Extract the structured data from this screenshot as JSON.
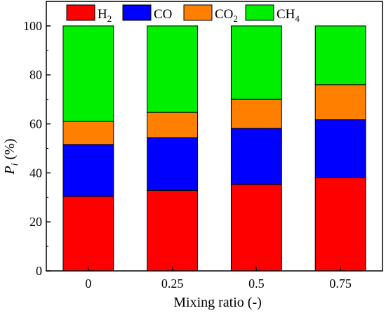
{
  "chart_data": {
    "type": "bar",
    "stacked": true,
    "categories": [
      "0",
      "0.25",
      "0.5",
      "0.75"
    ],
    "series": [
      {
        "name": "H2",
        "label_main": "H",
        "label_sub": "2",
        "color": "#ff0000",
        "values": [
          30.4,
          32.8,
          35.3,
          38.1
        ]
      },
      {
        "name": "CO",
        "label_main": "CO",
        "label_sub": "",
        "color": "#0000ff",
        "values": [
          21.2,
          21.6,
          22.9,
          23.6
        ]
      },
      {
        "name": "CO2",
        "label_main": "CO",
        "label_sub": "2",
        "color": "#ff8000",
        "values": [
          9.4,
          10.3,
          11.9,
          14.3
        ]
      },
      {
        "name": "CH4",
        "label_main": "CH",
        "label_sub": "4",
        "color": "#00ee00",
        "values": [
          39.0,
          35.3,
          29.9,
          24.0
        ]
      }
    ],
    "xlabel": "Mixing ratio (-)",
    "ylabel_main": "P",
    "ylabel_sub": "i",
    "ylabel_unit": " (%)",
    "yticks": [
      "0",
      "20",
      "40",
      "60",
      "80",
      "100"
    ],
    "ylim": [
      0,
      110
    ],
    "legend_position": "top",
    "grid": false
  }
}
